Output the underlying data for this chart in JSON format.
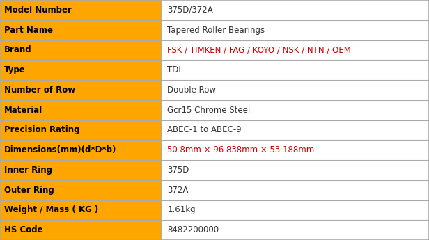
{
  "rows": [
    {
      "label": "Model Number",
      "value": "375D/372A",
      "value_color": "#333333"
    },
    {
      "label": "Part Name",
      "value": "Tapered Roller Bearings",
      "value_color": "#333333"
    },
    {
      "label": "Brand",
      "value": "FSK / TIMKEN / FAG / KOYO / NSK / NTN / OEM",
      "value_color": "#cc0000"
    },
    {
      "label": "Type",
      "value": "TDI",
      "value_color": "#333333"
    },
    {
      "label": "Number of Row",
      "value": "Double Row",
      "value_color": "#333333"
    },
    {
      "label": "Material",
      "value": "Gcr15 Chrome Steel",
      "value_color": "#333333"
    },
    {
      "label": "Precision Rating",
      "value": "ABEC-1 to ABEC-9",
      "value_color": "#333333"
    },
    {
      "label": "Dimensions(mm)(d*D*b)",
      "value": "50.8mm × 96.838mm × 53.188mm",
      "value_color": "#cc0000"
    },
    {
      "label": "Inner Ring",
      "value": "375D",
      "value_color": "#333333"
    },
    {
      "label": "Outer Ring",
      "value": "372A",
      "value_color": "#333333"
    },
    {
      "label": "Weight / Mass ( KG )",
      "value": "1.61kg",
      "value_color": "#333333"
    },
    {
      "label": "HS Code",
      "value": "8482200000",
      "value_color": "#333333"
    }
  ],
  "label_bg_color": "#FFA500",
  "value_bg_color": "#FFFFFF",
  "label_text_color": "#000000",
  "border_color": "#AAAAAA",
  "col_split": 0.375,
  "font_size": 8.5,
  "label_font_weight": "bold",
  "fig_width": 6.16,
  "fig_height": 3.45,
  "dpi": 100
}
